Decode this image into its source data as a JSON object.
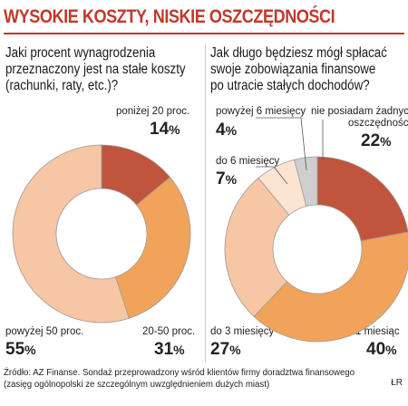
{
  "header": {
    "title": "WYSOKIE KOSZTY, NISKIE OSZCZĘDNOŚCI"
  },
  "chart_data": [
    {
      "type": "pie",
      "title": "Jaki procent wynagrodzenia\nprzeznaczony jest na stałe koszty\n(rachunki, raty, etc.)?",
      "categories": [
        "poniżej 20 proc.",
        "20-50 proc.",
        "powyżej 50 proc."
      ],
      "values": [
        14,
        31,
        55
      ],
      "value_labels": [
        "14",
        "31",
        "55"
      ],
      "unit": "%",
      "colors": [
        "#c1543d",
        "#f2a35a",
        "#f7c6a4"
      ]
    },
    {
      "type": "pie",
      "title": "Jak długo będziesz mógł spłacać\nswoje zobowiązania finansowe\npo utracie stałych dochodów?",
      "categories": [
        "nie posiadam żadnych oszczędności",
        "1 miesiąc",
        "do 3 miesięcy",
        "do 6 miesięcy",
        "powyżej 6 miesięcy"
      ],
      "values": [
        22,
        40,
        27,
        7,
        4
      ],
      "value_labels": [
        "22",
        "40",
        "27",
        "7",
        "4"
      ],
      "unit": "%",
      "colors": [
        "#c1543d",
        "#f2a35a",
        "#f7c6a4",
        "#fde4d2",
        "#cfcfcf"
      ]
    }
  ],
  "labels": {
    "left": {
      "below20": "poniżej 20 proc.",
      "from20to50": "20-50 proc.",
      "above50": "powyżej 50 proc."
    },
    "right": {
      "none_line1": "nie posiadam żadnych",
      "none_line2": "oszczędności",
      "month1": "1 miesiąc",
      "upto3": "do 3 miesięcy",
      "upto6": "do 6 miesięcy",
      "above6": "powyżej 6 miesięcy"
    }
  },
  "footer": {
    "source": "Źródło: AZ Finanse. Sondaż przeprowadzony wśród klientów firmy doradztwa finansowego\n(zasięg ogólnopolski ze szczególnym uwzględnieniem dużych miast)",
    "credit": "ŁR"
  }
}
